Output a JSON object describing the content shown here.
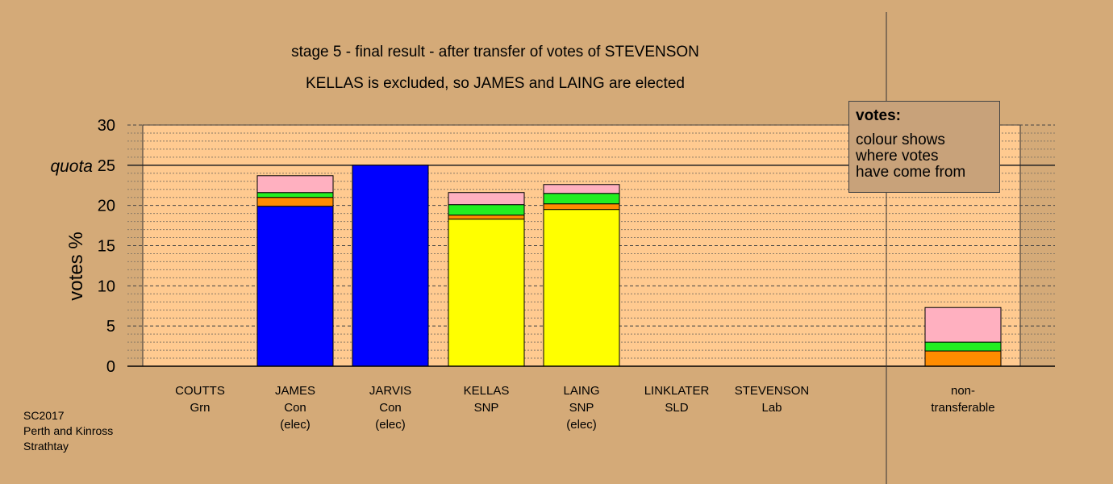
{
  "chart_data": {
    "type": "bar",
    "stacked": true,
    "title": "stage 5 - final result - after transfer of votes of STEVENSON",
    "subtitle": "KELLAS is excluded, so JAMES and LAING are elected",
    "ylabel": "votes %",
    "ylim": [
      0,
      30
    ],
    "yticks": [
      "0",
      "5",
      "10",
      "15",
      "20",
      "25",
      "30"
    ],
    "quota": {
      "label": "quota",
      "value": 25
    },
    "categories": [
      {
        "name": "COUTTS",
        "party": "Grn",
        "status": ""
      },
      {
        "name": "JAMES",
        "party": "Con",
        "status": "(elec)"
      },
      {
        "name": "JARVIS",
        "party": "Con",
        "status": "(elec)"
      },
      {
        "name": "KELLAS",
        "party": "SNP",
        "status": ""
      },
      {
        "name": "LAING",
        "party": "SNP",
        "status": "(elec)"
      },
      {
        "name": "LINKLATER",
        "party": "SLD",
        "status": ""
      },
      {
        "name": "STEVENSON",
        "party": "Lab",
        "status": ""
      },
      {
        "name": "non-",
        "party": "transferable",
        "status": ""
      }
    ],
    "stacks": [
      [],
      [
        {
          "color": "#0000ff",
          "value": 19.9
        },
        {
          "color": "#ff8c00",
          "value": 1.1
        },
        {
          "color": "#22ee22",
          "value": 0.6
        },
        {
          "color": "#ffb0c0",
          "value": 2.1
        }
      ],
      [
        {
          "color": "#0000ff",
          "value": 25.0
        }
      ],
      [
        {
          "color": "#ffff00",
          "value": 18.3
        },
        {
          "color": "#ff8c00",
          "value": 0.5
        },
        {
          "color": "#22ee22",
          "value": 1.3
        },
        {
          "color": "#ffb0c0",
          "value": 1.5
        }
      ],
      [
        {
          "color": "#ffff00",
          "value": 19.5
        },
        {
          "color": "#ff8c00",
          "value": 0.7
        },
        {
          "color": "#22ee22",
          "value": 1.3
        },
        {
          "color": "#ffb0c0",
          "value": 1.1
        }
      ],
      [],
      [],
      [
        {
          "color": "#ff8c00",
          "value": 1.9
        },
        {
          "color": "#22ee22",
          "value": 1.1
        },
        {
          "color": "#ffb0c0",
          "value": 4.3
        }
      ]
    ],
    "legend": {
      "heading": "votes:",
      "lines": [
        "colour shows",
        "where votes",
        "have come from"
      ]
    },
    "colors": {
      "background": "#d4aa78",
      "plot": "#ffca90"
    }
  },
  "source": [
    "SC2017",
    "Perth and Kinross",
    "Strathtay"
  ]
}
